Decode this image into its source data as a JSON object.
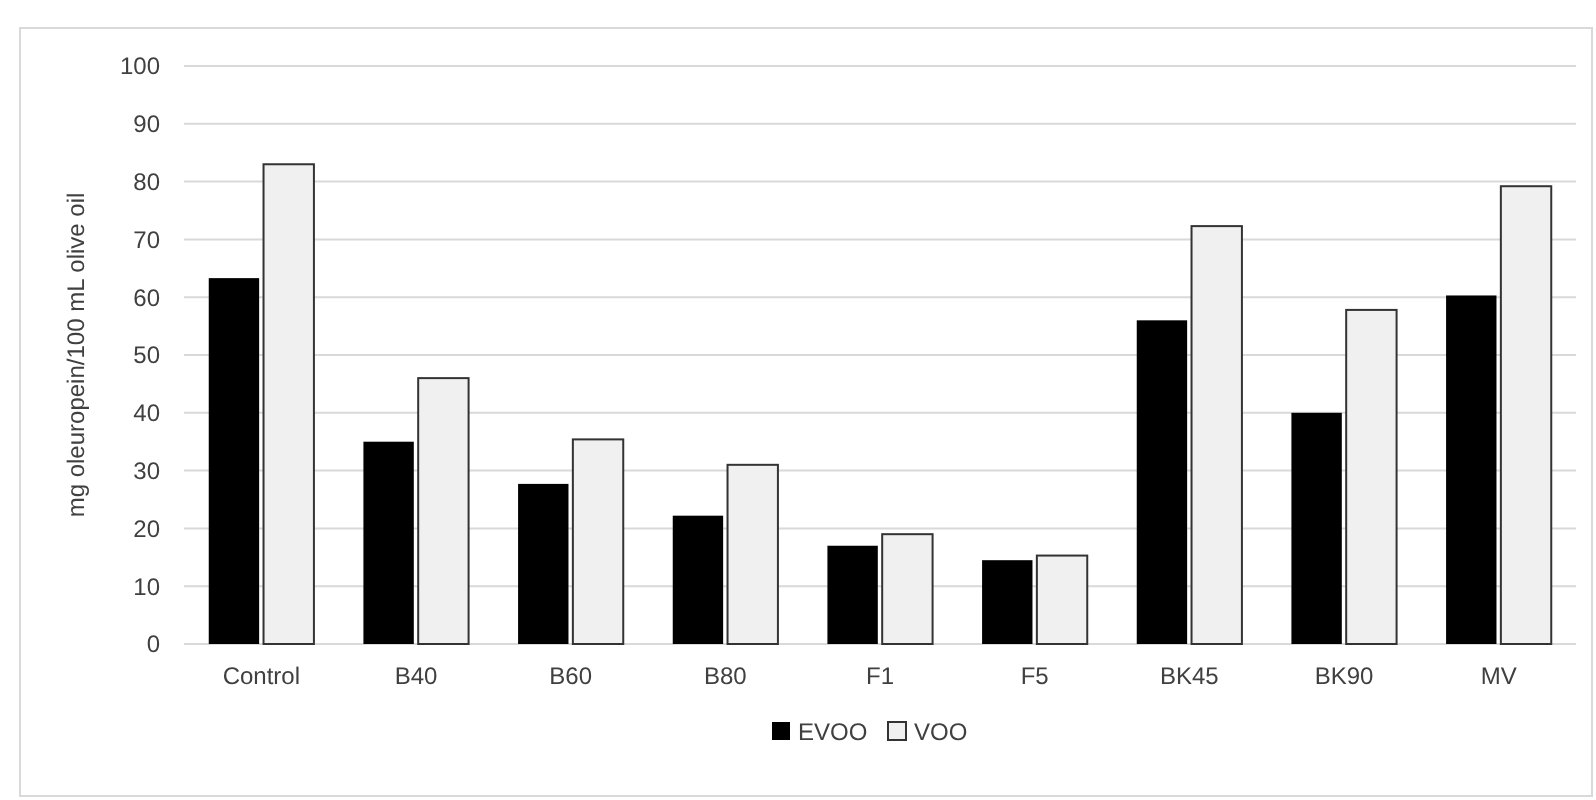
{
  "chart_data": {
    "type": "bar",
    "ylabel": "mg  oleuropein/100 mL olive oil",
    "categories": [
      "Control",
      "B40",
      "B60",
      "B80",
      "F1",
      "F5",
      "BK45",
      "BK90",
      "MV"
    ],
    "series": [
      {
        "name": "EVOO",
        "color": "#000000",
        "values": [
          63.3,
          35,
          27.7,
          22.2,
          17,
          14.5,
          56,
          40,
          60.3
        ]
      },
      {
        "name": "VOO",
        "color": "#f0f0f0",
        "values": [
          83,
          46,
          35.4,
          31,
          19,
          15.3,
          72.3,
          57.8,
          79.2
        ]
      }
    ],
    "ylim": [
      0,
      100
    ],
    "yticks": [
      0,
      10,
      20,
      30,
      40,
      50,
      60,
      70,
      80,
      90,
      100
    ],
    "grid": "y",
    "legend": "bottom"
  }
}
